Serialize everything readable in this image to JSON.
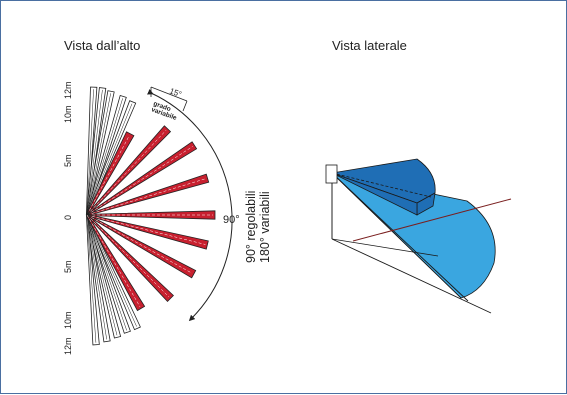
{
  "top_view": {
    "title": "Vista dall’alto",
    "scale_labels": [
      "12m",
      "10m",
      "5m",
      "0",
      "5m",
      "10m",
      "12m"
    ],
    "step_angle_label": "15°",
    "step_caption_line1": "grado",
    "step_caption_line2": "variabile",
    "angle_label": "90°",
    "range_line1": "90° regolabili",
    "range_line2": "180° variabili",
    "beam_color": "#c8202f",
    "outline_color": "#222222"
  },
  "side_view": {
    "title": "Vista laterale",
    "near_zone_color": "#1f6eb5",
    "far_zone_color": "#3aa6e0",
    "axis_line_color": "#7a1f1f"
  },
  "frame_color": "#4a6fa1"
}
